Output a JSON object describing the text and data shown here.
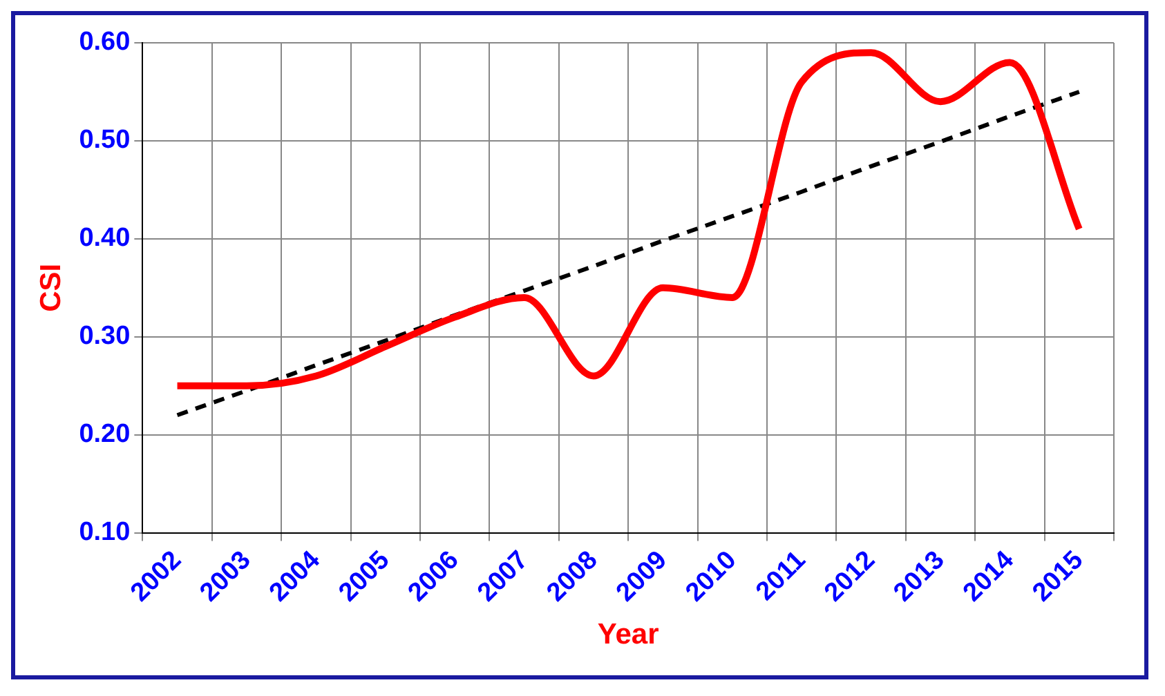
{
  "chart_data": {
    "type": "line",
    "xlabel": "Year",
    "ylabel": "CSI",
    "categories": [
      "2002",
      "2003",
      "2004",
      "2005",
      "2006",
      "2007",
      "2008",
      "2009",
      "2010",
      "2011",
      "2012",
      "2013",
      "2014",
      "2015"
    ],
    "series": [
      {
        "color": "#ff0000",
        "values": [
          0.25,
          0.25,
          0.26,
          0.29,
          0.32,
          0.34,
          0.26,
          0.35,
          0.34,
          0.56,
          0.59,
          0.54,
          0.58,
          0.41
        ],
        "line_style": "solid"
      },
      {
        "color": "#000000",
        "values": [
          0.22,
          0.245,
          0.271,
          0.296,
          0.322,
          0.347,
          0.372,
          0.398,
          0.423,
          0.448,
          0.474,
          0.499,
          0.525,
          0.55
        ],
        "line_style": "dashed"
      }
    ],
    "ylim": [
      0.1,
      0.6
    ],
    "yticks": [
      {
        "value": 0.1,
        "label": "0.10"
      },
      {
        "value": 0.2,
        "label": "0.20"
      },
      {
        "value": 0.3,
        "label": "0.30"
      },
      {
        "value": 0.4,
        "label": "0.40"
      },
      {
        "value": 0.5,
        "label": "0.50"
      },
      {
        "value": 0.6,
        "label": "0.60"
      }
    ],
    "grid": true,
    "legend": false,
    "marker": "none"
  }
}
